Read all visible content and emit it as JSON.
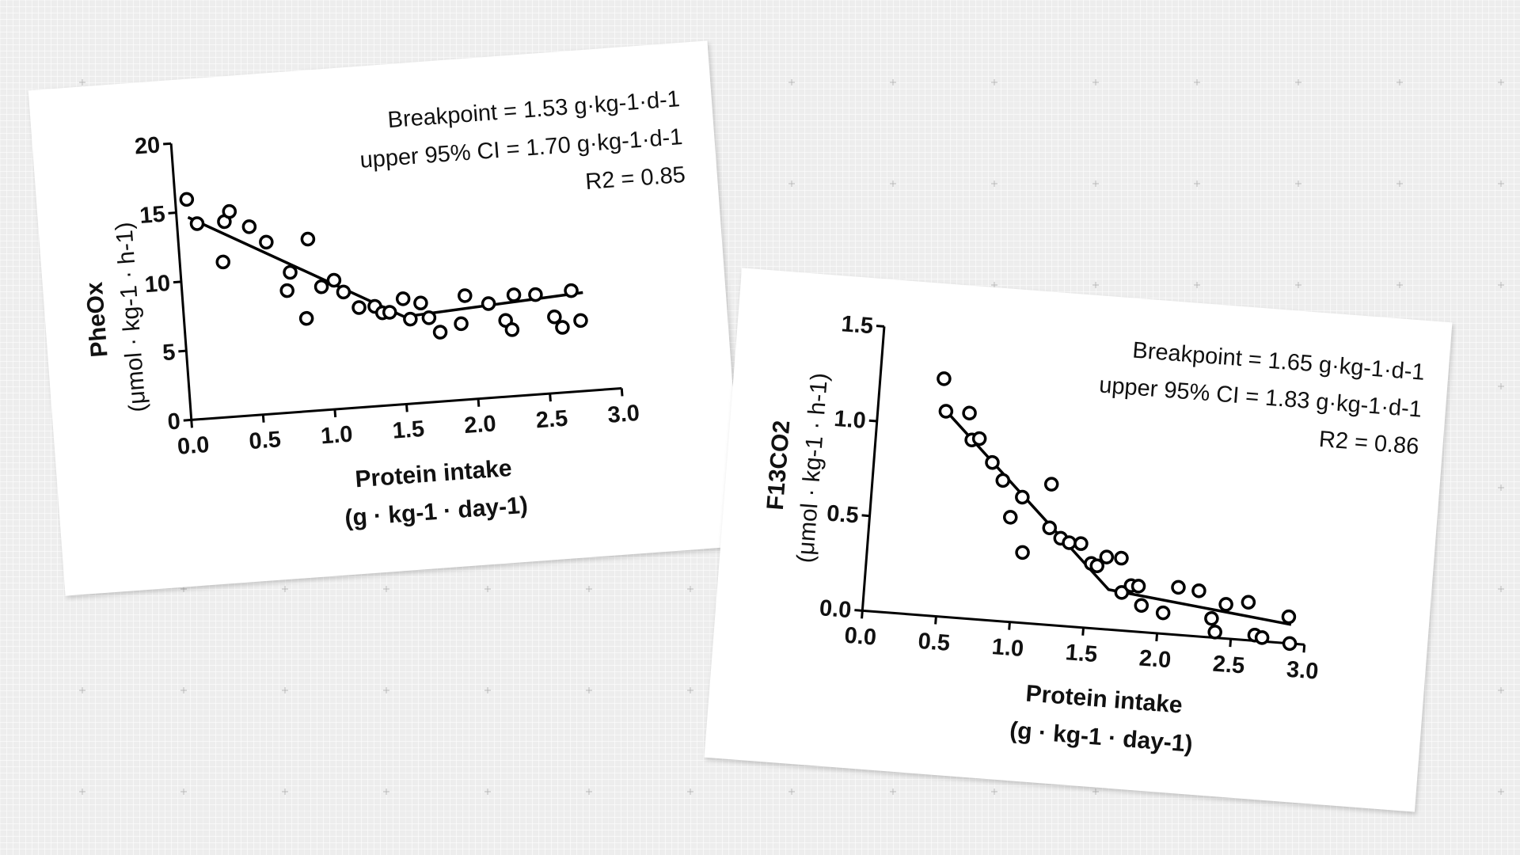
{
  "chart_data": [
    {
      "type": "scatter",
      "title": "",
      "xlabel": "Protein intake",
      "xlabel_units": "(g · kg-1 · day-1)",
      "ylabel": "PheOx",
      "ylabel_units": "(μmol · kg-1 · h-1)",
      "xlim": [
        0.0,
        3.0
      ],
      "ylim": [
        0,
        20
      ],
      "xticks": [
        "0.0",
        "0.5",
        "1.0",
        "1.5",
        "2.0",
        "2.5",
        "3.0"
      ],
      "yticks": [
        "0",
        "5",
        "10",
        "15",
        "20"
      ],
      "annotations": [
        "Breakpoint = 1.53 g·kg-1·d-1",
        "upper 95% CI = 1.70 g·kg-1·d-1",
        "R2 = 0.85"
      ],
      "points": [
        [
          0.08,
          15.9
        ],
        [
          0.14,
          14.1
        ],
        [
          0.3,
          11.2
        ],
        [
          0.33,
          14.1
        ],
        [
          0.37,
          14.8
        ],
        [
          0.5,
          13.6
        ],
        [
          0.61,
          12.4
        ],
        [
          0.73,
          8.8
        ],
        [
          0.76,
          10.1
        ],
        [
          0.85,
          6.7
        ],
        [
          0.9,
          12.4
        ],
        [
          0.97,
          8.9
        ],
        [
          1.06,
          9.3
        ],
        [
          1.12,
          8.4
        ],
        [
          1.22,
          7.2
        ],
        [
          1.33,
          7.2
        ],
        [
          1.38,
          6.7
        ],
        [
          1.43,
          6.7
        ],
        [
          1.53,
          7.6
        ],
        [
          1.57,
          6.1
        ],
        [
          1.65,
          7.2
        ],
        [
          1.7,
          6.1
        ],
        [
          1.77,
          5.0
        ],
        [
          1.92,
          5.5
        ],
        [
          1.96,
          7.5
        ],
        [
          2.12,
          6.8
        ],
        [
          2.23,
          5.5
        ],
        [
          2.27,
          4.8
        ],
        [
          2.3,
          7.3
        ],
        [
          2.45,
          7.2
        ],
        [
          2.57,
          5.5
        ],
        [
          2.62,
          4.7
        ],
        [
          2.7,
          7.3
        ],
        [
          2.75,
          5.1
        ]
      ],
      "fit_line": [
        [
          0.08,
          14.6
        ],
        [
          1.53,
          6.3
        ],
        [
          2.78,
          7.1
        ]
      ]
    },
    {
      "type": "scatter",
      "title": "",
      "xlabel": "Protein intake",
      "xlabel_units": "(g · kg-1 · day-1)",
      "ylabel": "F13CO2",
      "ylabel_units": "(μmol · kg-1 · h-1)",
      "xlim": [
        0.0,
        3.0
      ],
      "ylim": [
        0.0,
        1.5
      ],
      "xticks": [
        "0.0",
        "0.5",
        "1.0",
        "1.5",
        "2.0",
        "2.5",
        "3.0"
      ],
      "yticks": [
        "0.0",
        "0.5",
        "1.0",
        "1.5"
      ],
      "annotations": [
        "Breakpoint = 1.65 g·kg-1·d-1",
        "upper 95% CI = 1.83 g·kg-1·d-1",
        "R2 = 0.86"
      ],
      "points": [
        [
          0.43,
          1.25
        ],
        [
          0.46,
          1.08
        ],
        [
          0.62,
          1.08
        ],
        [
          0.65,
          0.94
        ],
        [
          0.7,
          0.95
        ],
        [
          0.8,
          0.83
        ],
        [
          0.88,
          0.74
        ],
        [
          0.95,
          0.55
        ],
        [
          1.02,
          0.66
        ],
        [
          1.05,
          0.37
        ],
        [
          1.21,
          0.74
        ],
        [
          1.22,
          0.51
        ],
        [
          1.3,
          0.46
        ],
        [
          1.36,
          0.44
        ],
        [
          1.44,
          0.44
        ],
        [
          1.52,
          0.34
        ],
        [
          1.56,
          0.33
        ],
        [
          1.62,
          0.38
        ],
        [
          1.72,
          0.38
        ],
        [
          1.74,
          0.2
        ],
        [
          1.8,
          0.24
        ],
        [
          1.85,
          0.24
        ],
        [
          1.88,
          0.14
        ],
        [
          2.03,
          0.11
        ],
        [
          2.12,
          0.25
        ],
        [
          2.26,
          0.24
        ],
        [
          2.36,
          0.1
        ],
        [
          2.39,
          0.03
        ],
        [
          2.45,
          0.18
        ],
        [
          2.6,
          0.2
        ],
        [
          2.66,
          0.03
        ],
        [
          2.71,
          0.02
        ],
        [
          2.88,
          0.14
        ],
        [
          2.9,
          0.0
        ]
      ],
      "fit_line": [
        [
          0.45,
          1.09
        ],
        [
          1.65,
          0.21
        ],
        [
          2.9,
          0.1
        ]
      ]
    }
  ]
}
